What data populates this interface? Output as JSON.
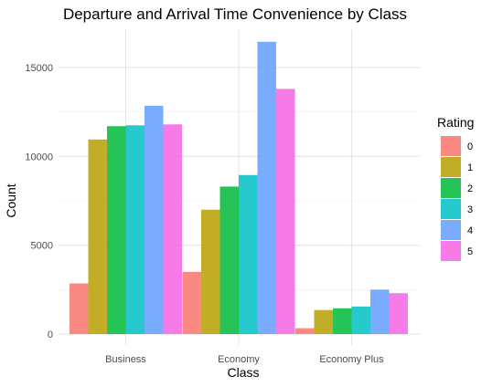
{
  "chart_data": {
    "type": "bar",
    "title": "Departure and Arrival Time Convenience by Class",
    "xlabel": "Class",
    "ylabel": "Count",
    "categories": [
      "Business",
      "Economy",
      "Economy Plus"
    ],
    "ylim": [
      0,
      17000
    ],
    "yticks": [
      0,
      5000,
      10000,
      15000
    ],
    "grid": true,
    "legend": {
      "title": "Rating",
      "position": "right"
    },
    "series": [
      {
        "name": "0",
        "color": "#F8766D",
        "values": [
          2850,
          3500,
          330
        ]
      },
      {
        "name": "1",
        "color": "#B79F00",
        "values": [
          10950,
          7000,
          1350
        ]
      },
      {
        "name": "2",
        "color": "#00BA38",
        "values": [
          11700,
          8300,
          1450
        ]
      },
      {
        "name": "3",
        "color": "#00BFC4",
        "values": [
          11750,
          8950,
          1550
        ]
      },
      {
        "name": "4",
        "color": "#619CFF",
        "values": [
          12850,
          16450,
          2500
        ]
      },
      {
        "name": "5",
        "color": "#F564E3",
        "values": [
          11800,
          13800,
          2300
        ]
      }
    ]
  }
}
